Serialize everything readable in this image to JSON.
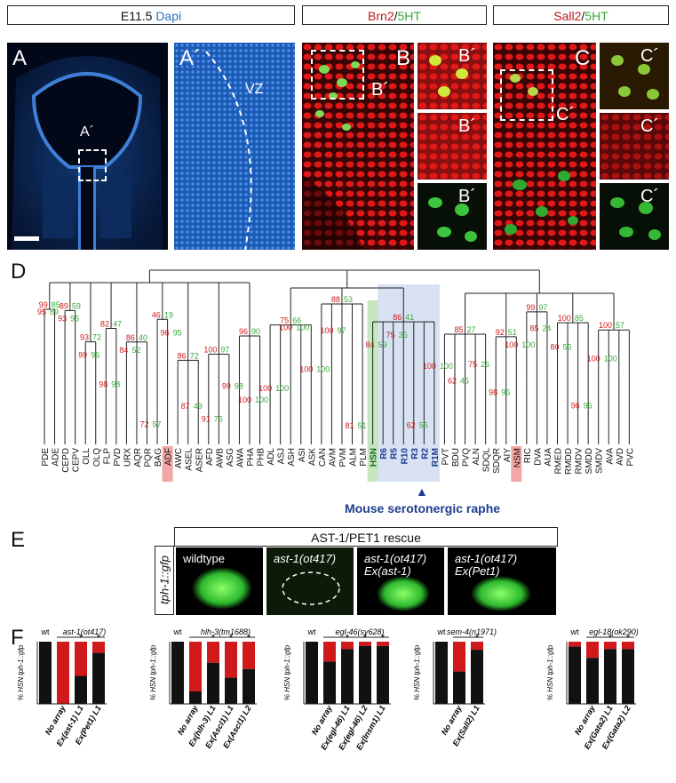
{
  "top_headers": {
    "a": {
      "prefix": "E11.5 ",
      "suffix": "Dapi"
    },
    "b": {
      "part1": "Brn2",
      "sep": "/",
      "part2": "5HT"
    },
    "c": {
      "part1": "Sall2",
      "sep": "/",
      "part2": "5HT"
    }
  },
  "panel_letters": {
    "A": "A",
    "A2": "A´",
    "A_inset": "A´",
    "vz": "VZ",
    "B": "B",
    "B_inset": "B´",
    "B1": "B´",
    "B2": "B´",
    "B3": "B´",
    "C": "C",
    "C_inset": "C´",
    "C1": "C´",
    "C2": "C´",
    "C3": "C´",
    "D": "D",
    "E": "E",
    "F": "F"
  },
  "tree": {
    "leaves": [
      "PDE",
      "ADE",
      "CEPD",
      "CEPV",
      "OLL",
      "OLQ",
      "FLP",
      "PVD",
      "URX",
      "AQR",
      "PQR",
      "BAG",
      "ADF",
      "AWC",
      "ASEL",
      "ASER",
      "AFD",
      "AWB",
      "ASG",
      "AWA",
      "PHA",
      "PHB",
      "ADL",
      "ASJ",
      "ASH",
      "ASI",
      "ASK",
      "CAN",
      "AVM",
      "PVM",
      "ALM",
      "PLM",
      "HSN",
      "R6",
      "R5",
      "R10",
      "R3",
      "R2",
      "R1M",
      "PVT",
      "BDU",
      "PVQ",
      "ALN",
      "SDQL",
      "SDQR",
      "AIY",
      "NSM",
      "RIC",
      "DVA",
      "AUA",
      "RMED",
      "RMDD",
      "RMDV",
      "SMDD",
      "SMDV",
      "AVA",
      "AVD",
      "PVC"
    ],
    "highlight_red": [
      "ADF",
      "NSM"
    ],
    "highlight_green": [
      "HSN"
    ],
    "highlight_blue": [
      "R6",
      "R5",
      "R10",
      "R3",
      "R2",
      "R1M"
    ],
    "bootstrap_labels": [
      {
        "red": "99",
        "green": "85"
      },
      {
        "red": "89",
        "green": "59"
      },
      {
        "red": "93",
        "green": "72"
      },
      {
        "red": "82",
        "green": "47"
      },
      {
        "red": "86",
        "green": "40"
      },
      {
        "red": "46",
        "green": "19"
      },
      {
        "red": "86",
        "green": "72"
      },
      {
        "red": "100",
        "green": "97"
      },
      {
        "red": "96",
        "green": "90"
      },
      {
        "red": "75",
        "green": "66"
      },
      {
        "red": "88",
        "green": "53"
      },
      {
        "red": "86",
        "green": "41"
      },
      {
        "red": "85",
        "green": "27"
      },
      {
        "red": "92",
        "green": "51"
      },
      {
        "red": "99",
        "green": "97"
      },
      {
        "red": "100",
        "green": "85"
      },
      {
        "red": "100",
        "green": "57"
      },
      {
        "red": "95",
        "green": "89"
      },
      {
        "red": "93",
        "green": "95"
      },
      {
        "red": "99",
        "green": "96"
      },
      {
        "red": "98",
        "green": "98"
      },
      {
        "red": "84",
        "green": "52"
      },
      {
        "red": "72",
        "green": "57"
      },
      {
        "red": "96",
        "green": "95"
      },
      {
        "red": "87",
        "green": "49"
      },
      {
        "red": "91",
        "green": "75"
      },
      {
        "red": "99",
        "green": "98"
      },
      {
        "red": "100",
        "green": "100"
      },
      {
        "red": "100",
        "green": "100"
      },
      {
        "red": "100",
        "green": "100"
      },
      {
        "red": "100",
        "green": "100"
      },
      {
        "red": "100",
        "green": "97"
      },
      {
        "red": "81",
        "green": "51"
      },
      {
        "red": "84",
        "green": "59"
      },
      {
        "red": "75",
        "green": "35"
      },
      {
        "red": "62",
        "green": "55"
      },
      {
        "red": "100",
        "green": "100"
      },
      {
        "red": "62",
        "green": "45"
      },
      {
        "red": "75",
        "green": "26"
      },
      {
        "red": "98",
        "green": "96"
      },
      {
        "red": "100",
        "green": "100"
      },
      {
        "red": "85",
        "green": "24"
      },
      {
        "red": "80",
        "green": "55"
      },
      {
        "red": "96",
        "green": "96"
      },
      {
        "red": "100",
        "green": "100"
      }
    ],
    "raphe_label": "Mouse serotonergic raphe"
  },
  "rescue": {
    "title": "AST-1/PET1 rescue",
    "side_label": "tph-1::gfp",
    "panels": [
      {
        "line1": "wildtype",
        "line2": ""
      },
      {
        "line1": "ast-1(ot417)",
        "line2": ""
      },
      {
        "line1": "ast-1(ot417)",
        "line2": "Ex(ast-1)"
      },
      {
        "line1": "ast-1(ot417)",
        "line2": "Ex(Pet1)"
      }
    ]
  },
  "chart_data": [
    {
      "type": "bar",
      "ylabel": "% HSN tph-1::gfp",
      "wt_label": "wt",
      "mutant": "ast-1(ot417)",
      "categories": [
        "",
        "No array",
        "Ex(ast-1) L1",
        "Ex(Pet1) L1"
      ],
      "series": [
        {
          "name": "black",
          "values": [
            100,
            0,
            45,
            82
          ]
        },
        {
          "name": "red",
          "values": [
            0,
            100,
            55,
            18
          ]
        }
      ],
      "significant": [
        false,
        false,
        true,
        true
      ],
      "ylim": [
        0,
        100
      ]
    },
    {
      "type": "bar",
      "ylabel": "% HSN tph-1::gfp",
      "wt_label": "wt",
      "mutant": "hlh-3(tm1688)",
      "categories": [
        "",
        "No array",
        "Ex(hlh-3) L1",
        "Ex(Ascl1) L1",
        "Ex(Ascl1) L2"
      ],
      "series": [
        {
          "name": "black",
          "values": [
            100,
            20,
            66,
            42,
            56
          ]
        },
        {
          "name": "red",
          "values": [
            0,
            80,
            34,
            58,
            44
          ]
        }
      ],
      "significant": [
        false,
        false,
        true,
        true,
        true
      ],
      "ylim": [
        0,
        100
      ]
    },
    {
      "type": "bar",
      "ylabel": "% HSN tph-1::gfp",
      "wt_label": "wt",
      "mutant": "egl-46(sy628)",
      "categories": [
        "",
        "No array",
        "Ex(egl-46) L1",
        "Ex(egl-46) L2",
        "Ex(Insm1) L1"
      ],
      "series": [
        {
          "name": "black",
          "values": [
            100,
            68,
            88,
            93,
            93
          ]
        },
        {
          "name": "red",
          "values": [
            0,
            32,
            12,
            7,
            7
          ]
        }
      ],
      "significant": [
        false,
        false,
        true,
        true,
        true
      ],
      "ylim": [
        0,
        100
      ]
    },
    {
      "type": "bar",
      "ylabel": "% HSN tph-1::gfp",
      "wt_label": "wt",
      "mutant": "sem-4(n1971)",
      "categories": [
        "",
        "No array",
        "Ex(Sall2) L1"
      ],
      "series": [
        {
          "name": "black",
          "values": [
            100,
            52,
            87
          ]
        },
        {
          "name": "red",
          "values": [
            0,
            48,
            13
          ]
        }
      ],
      "significant": [
        false,
        false,
        true
      ],
      "ylim": [
        0,
        100
      ]
    },
    {
      "type": "bar",
      "ylabel": "% HSN tph-1::gfp",
      "wt_label": "wt",
      "mutant": "egl-18(ok290)",
      "categories": [
        "",
        "No array",
        "Ex(Gata2) L1",
        "Ex(Gata2) L2"
      ],
      "series": [
        {
          "name": "black",
          "values": [
            92,
            74,
            88,
            88
          ]
        },
        {
          "name": "red",
          "values": [
            8,
            26,
            12,
            12
          ]
        }
      ],
      "significant": [
        false,
        false,
        true,
        true
      ],
      "ylim": [
        0,
        100
      ]
    }
  ],
  "colors": {
    "dapi": "#2a6fc0",
    "red": "#d0191b",
    "green": "#3aa83a",
    "blue_band": "#c7d6ee",
    "green_band": "#bfe3b8",
    "highlight_red": "#f2a6a6"
  }
}
